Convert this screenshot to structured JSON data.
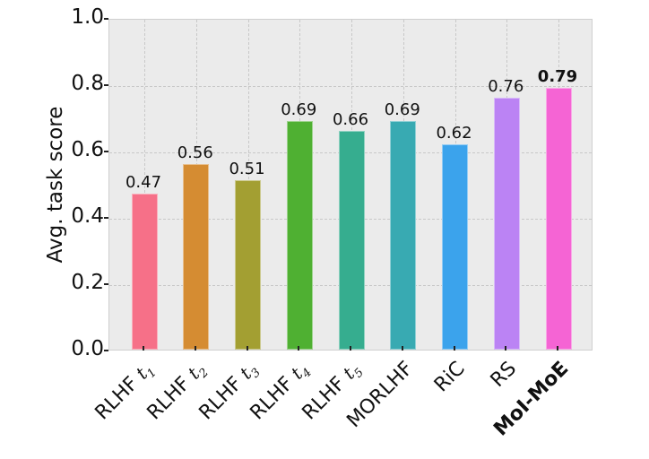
{
  "chart_data": {
    "type": "bar",
    "title": "",
    "xlabel": "",
    "ylabel": "Avg. task score",
    "ylim": [
      0.0,
      1.0
    ],
    "yticks": [
      "0.0",
      "0.2",
      "0.4",
      "0.6",
      "0.8",
      "1.0"
    ],
    "grid": true,
    "legend": null,
    "categories": [
      "RLHF t1",
      "RLHF t2",
      "RLHF t3",
      "RLHF t4",
      "RLHF t5",
      "MORLHF",
      "RiC",
      "RS",
      "MoI-MoE"
    ],
    "values": [
      0.47,
      0.56,
      0.51,
      0.69,
      0.66,
      0.69,
      0.62,
      0.76,
      0.79
    ],
    "value_labels": [
      "0.47",
      "0.56",
      "0.51",
      "0.69",
      "0.66",
      "0.69",
      "0.62",
      "0.76",
      "0.79"
    ],
    "colors": [
      "#f67088",
      "#d58c32",
      "#a39f32",
      "#4fb032",
      "#36ad8f",
      "#38aab2",
      "#3ba3ec",
      "#bb83f4",
      "#f564d4"
    ],
    "highlighted": "MoI-MoE"
  },
  "labels": {
    "ylabel": "Avg. task score",
    "x": [
      {
        "prefix": "RLHF ",
        "var": "t",
        "sub": "1",
        "bold": false
      },
      {
        "prefix": "RLHF ",
        "var": "t",
        "sub": "2",
        "bold": false
      },
      {
        "prefix": "RLHF ",
        "var": "t",
        "sub": "3",
        "bold": false
      },
      {
        "prefix": "RLHF ",
        "var": "t",
        "sub": "4",
        "bold": false
      },
      {
        "prefix": "RLHF ",
        "var": "t",
        "sub": "5",
        "bold": false
      },
      {
        "prefix": "MORLHF",
        "var": "",
        "sub": "",
        "bold": false
      },
      {
        "prefix": "RiC",
        "var": "",
        "sub": "",
        "bold": false
      },
      {
        "prefix": "RS",
        "var": "",
        "sub": "",
        "bold": false
      },
      {
        "prefix": "MoI-MoE",
        "var": "",
        "sub": "",
        "bold": true
      }
    ]
  }
}
